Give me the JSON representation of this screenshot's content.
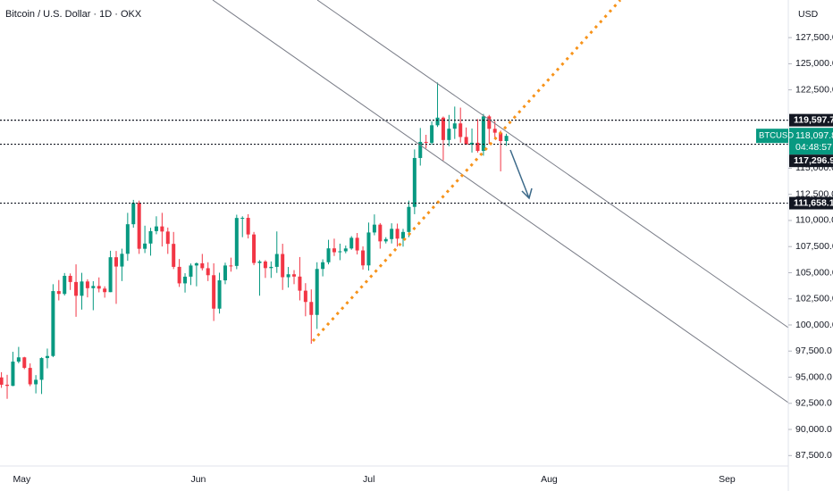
{
  "chart_data": {
    "type": "candlestick",
    "title": "Bitcoin / U.S. Dollar · 1D · OKX",
    "currency": "USD",
    "categories": [
      null,
      null,
      "May",
      null,
      null,
      null,
      null,
      null,
      null,
      null,
      null,
      null,
      null,
      null,
      null,
      null,
      null,
      null,
      null,
      null,
      null,
      null,
      null,
      null,
      null,
      null,
      null,
      null,
      null,
      null,
      null,
      null,
      null,
      "Jun",
      null,
      null,
      null,
      null,
      null,
      null,
      null,
      null,
      null,
      null,
      null,
      null,
      null,
      null,
      null,
      null,
      null,
      null,
      null,
      null,
      null,
      null,
      null,
      null,
      null,
      null,
      null,
      null,
      null,
      "Jul",
      null,
      null,
      null,
      null,
      null,
      null,
      null,
      null,
      null,
      null,
      null,
      null,
      null,
      null,
      null,
      null,
      null,
      null,
      null,
      null,
      null,
      null,
      null,
      null,
      null,
      null,
      null,
      null,
      null,
      null,
      "Aug",
      null,
      null,
      null,
      null,
      null,
      null,
      null,
      null,
      null,
      null,
      null,
      null,
      null,
      null,
      null,
      null,
      null,
      null,
      null,
      null,
      null,
      null,
      null,
      null,
      null,
      null,
      null,
      null,
      null,
      null,
      "Sep",
      null,
      null,
      null,
      null,
      null,
      null,
      null,
      null,
      null,
      null,
      null
    ],
    "open": [
      94980,
      94280,
      94170,
      96490,
      96900,
      95890,
      94320,
      94750,
      96830,
      97030,
      103240,
      102970,
      104700,
      104110,
      102790,
      104160,
      103520,
      103730,
      103480,
      103140,
      106480,
      105590,
      106810,
      109640,
      111680,
      107290,
      107790,
      108980,
      109430,
      108940,
      107760,
      105560,
      103980,
      104620,
      105690,
      105900,
      105430,
      104760,
      101560,
      104270,
      105690,
      105650,
      110240,
      110250,
      108660,
      105930,
      106070,
      105440,
      105560,
      106790,
      104570,
      104850,
      104630,
      103280,
      102200,
      100960,
      105360,
      106000,
      107330,
      106960,
      107050,
      107320,
      108340,
      107130,
      105700,
      108850,
      109600,
      108000,
      108220,
      109200,
      108260,
      108900,
      111300,
      115980,
      117520,
      117430,
      119110,
      119840,
      117700,
      118780,
      119290,
      117990,
      117260,
      117440,
      116660,
      119960,
      118770,
      118400,
      117600,
      null,
      null,
      null,
      null,
      null,
      null,
      null,
      null,
      null,
      null,
      null,
      null,
      null,
      null,
      null,
      null,
      null,
      null,
      null,
      null,
      null,
      null,
      null,
      null,
      null,
      null,
      null,
      null,
      null,
      null,
      null,
      null,
      null,
      null,
      null,
      null,
      null,
      null,
      null,
      null,
      null,
      null,
      null,
      null,
      null,
      null,
      null,
      null
    ],
    "high": [
      95480,
      95230,
      97430,
      97900,
      96950,
      96320,
      95200,
      96900,
      97740,
      103900,
      104300,
      104970,
      104930,
      105800,
      104990,
      104370,
      104190,
      104550,
      103700,
      107100,
      107080,
      107300,
      110730,
      111970,
      111900,
      109500,
      109300,
      110400,
      110730,
      109320,
      108900,
      106310,
      104950,
      105880,
      105980,
      106800,
      106000,
      105900,
      105000,
      105960,
      106440,
      110550,
      110400,
      110600,
      108900,
      106200,
      106200,
      106080,
      108950,
      107770,
      105550,
      105250,
      106500,
      104000,
      103400,
      106000,
      106280,
      108150,
      108260,
      107780,
      107600,
      108500,
      108800,
      107520,
      109800,
      110580,
      109750,
      108400,
      109730,
      109700,
      109200,
      111900,
      116800,
      118850,
      118200,
      119480,
      123200,
      119950,
      120100,
      120900,
      120800,
      118900,
      118800,
      119700,
      120200,
      120100,
      119500,
      118600,
      118300,
      null,
      null,
      null,
      null,
      null,
      null,
      null,
      null,
      null,
      null,
      null,
      null,
      null,
      null,
      null,
      null,
      null,
      null,
      null,
      null,
      null,
      null,
      null,
      null,
      null,
      null,
      null,
      null,
      null,
      null,
      null,
      null,
      null,
      null,
      null,
      null,
      null,
      null,
      null,
      null,
      null,
      null,
      null,
      null,
      null,
      null,
      null,
      null
    ],
    "low": [
      93980,
      92930,
      94140,
      96330,
      95770,
      94140,
      93450,
      93390,
      95850,
      96920,
      102350,
      102820,
      103350,
      100780,
      101470,
      102640,
      101410,
      103120,
      102610,
      103140,
      102020,
      104200,
      106140,
      109310,
      106800,
      106880,
      106630,
      108680,
      107510,
      106800,
      105350,
      103640,
      103100,
      103820,
      103700,
      105220,
      104200,
      100380,
      101090,
      103900,
      105100,
      105340,
      108400,
      108280,
      105720,
      102800,
      104500,
      104500,
      104980,
      103350,
      103580,
      103900,
      102350,
      100830,
      98200,
      99620,
      104650,
      105800,
      106600,
      106200,
      106860,
      107200,
      106750,
      105300,
      105200,
      108580,
      107300,
      107800,
      107800,
      107500,
      107500,
      108400,
      110600,
      115250,
      116900,
      117250,
      118950,
      115750,
      117100,
      117800,
      117450,
      117300,
      116500,
      116500,
      116200,
      117300,
      117900,
      114700,
      117150,
      null,
      null,
      null,
      null,
      null,
      null,
      null,
      null,
      null,
      null,
      null,
      null,
      null,
      null,
      null,
      null,
      null,
      null,
      null,
      null,
      null,
      null,
      null,
      null,
      null,
      null,
      null,
      null,
      null,
      null,
      null,
      null,
      null,
      null,
      null,
      null,
      null,
      null,
      null,
      null,
      null,
      null,
      null,
      null,
      null,
      null,
      null,
      null
    ],
    "close": [
      94280,
      94170,
      96490,
      96900,
      95890,
      94320,
      94750,
      96830,
      97030,
      103240,
      102970,
      104700,
      104110,
      102790,
      104160,
      103520,
      103730,
      103480,
      103140,
      106480,
      105590,
      106810,
      109640,
      111680,
      107290,
      107790,
      108980,
      109430,
      108940,
      107760,
      105560,
      103980,
      104620,
      105690,
      105900,
      105430,
      104760,
      101560,
      104270,
      105690,
      105650,
      110240,
      110250,
      108660,
      105930,
      106070,
      105440,
      105560,
      106790,
      104570,
      104850,
      104630,
      103280,
      102200,
      100960,
      105360,
      106000,
      107330,
      106960,
      107050,
      107320,
      108340,
      107130,
      105700,
      108850,
      109600,
      108000,
      108220,
      109200,
      108260,
      108900,
      111300,
      115980,
      117520,
      117430,
      119110,
      119840,
      117700,
      118780,
      119290,
      117990,
      117260,
      117440,
      116660,
      119960,
      118770,
      118400,
      117600,
      118097.8,
      null,
      null,
      null,
      null,
      null,
      null,
      null,
      null,
      null,
      null,
      null,
      null,
      null,
      null,
      null,
      null,
      null,
      null,
      null,
      null,
      null,
      null,
      null,
      null,
      null,
      null,
      null,
      null,
      null,
      null,
      null,
      null,
      null,
      null,
      null,
      null,
      null,
      null,
      null,
      null,
      null,
      null,
      null,
      null,
      null,
      null,
      null,
      null
    ],
    "up_color": "#089981",
    "down_color": "#f23645",
    "ylim": [
      86500,
      131100
    ],
    "yticks": [
      {
        "value": 87500,
        "label": "87,500.0"
      },
      {
        "value": 90000,
        "label": "90,000.0"
      },
      {
        "value": 92500,
        "label": "92,500.0"
      },
      {
        "value": 95000,
        "label": "95,000.0"
      },
      {
        "value": 97500,
        "label": "97,500.0"
      },
      {
        "value": 100000,
        "label": "100,000.0"
      },
      {
        "value": 102500,
        "label": "102,500.0"
      },
      {
        "value": 105000,
        "label": "105,000.0"
      },
      {
        "value": 107500,
        "label": "107,500.0"
      },
      {
        "value": 110000,
        "label": "110,000.0"
      },
      {
        "value": 112500,
        "label": "112,500.0"
      },
      {
        "value": 115000,
        "label": "115,000.0"
      },
      {
        "value": 122500,
        "label": "122,500.0"
      },
      {
        "value": 125000,
        "label": "125,000.0"
      },
      {
        "value": 127500,
        "label": "127,500.0"
      }
    ],
    "grid": false,
    "levels": [
      {
        "value": 119597.7,
        "label": "119,597.7"
      },
      {
        "value": 117296.9,
        "label": "117,296.9"
      },
      {
        "value": 111658.1,
        "label": "111,658.1"
      }
    ],
    "last_price": {
      "value": 118097.8,
      "label": "118,097.8"
    },
    "symbol": "BTCUSD",
    "countdown": "04:48:57"
  }
}
